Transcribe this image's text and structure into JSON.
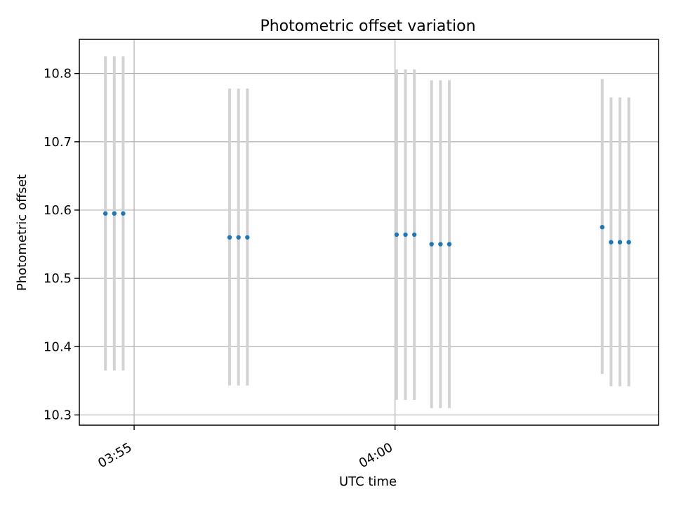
{
  "chart_data": {
    "type": "scatter",
    "title": "Photometric offset variation",
    "xlabel": "UTC time",
    "ylabel": "Photometric offset",
    "x_ticks": [
      "03:55",
      "04:00"
    ],
    "x_tick_minutes": [
      235,
      240
    ],
    "xlim_minutes": [
      233.95,
      245.05
    ],
    "y_ticks": [
      "10.3",
      "10.4",
      "10.5",
      "10.6",
      "10.7",
      "10.8"
    ],
    "y_tick_values": [
      10.3,
      10.4,
      10.5,
      10.6,
      10.7,
      10.8
    ],
    "ylim": [
      10.285,
      10.85
    ],
    "grid": true,
    "series": [
      {
        "values_x_minutes": [
          234.45,
          234.62,
          234.79,
          236.83,
          237.0,
          237.17,
          240.03,
          240.2,
          240.37,
          240.7,
          240.87,
          241.04,
          243.97,
          244.14,
          244.31,
          244.48
        ],
        "y": [
          10.595,
          10.595,
          10.595,
          10.56,
          10.56,
          10.56,
          10.564,
          10.564,
          10.564,
          10.55,
          10.55,
          10.55,
          10.575,
          10.553,
          10.553,
          10.553
        ],
        "y_low": [
          10.365,
          10.365,
          10.365,
          10.343,
          10.343,
          10.343,
          10.322,
          10.322,
          10.322,
          10.31,
          10.31,
          10.31,
          10.36,
          10.342,
          10.342,
          10.342
        ],
        "y_high": [
          10.825,
          10.825,
          10.825,
          10.778,
          10.778,
          10.778,
          10.806,
          10.806,
          10.806,
          10.79,
          10.79,
          10.79,
          10.792,
          10.765,
          10.765,
          10.765
        ]
      }
    ],
    "colors": {
      "point": "#1f77b4",
      "errorbar": "#d3d3d3",
      "grid": "#b0b0b0",
      "axes": "#000000"
    }
  }
}
